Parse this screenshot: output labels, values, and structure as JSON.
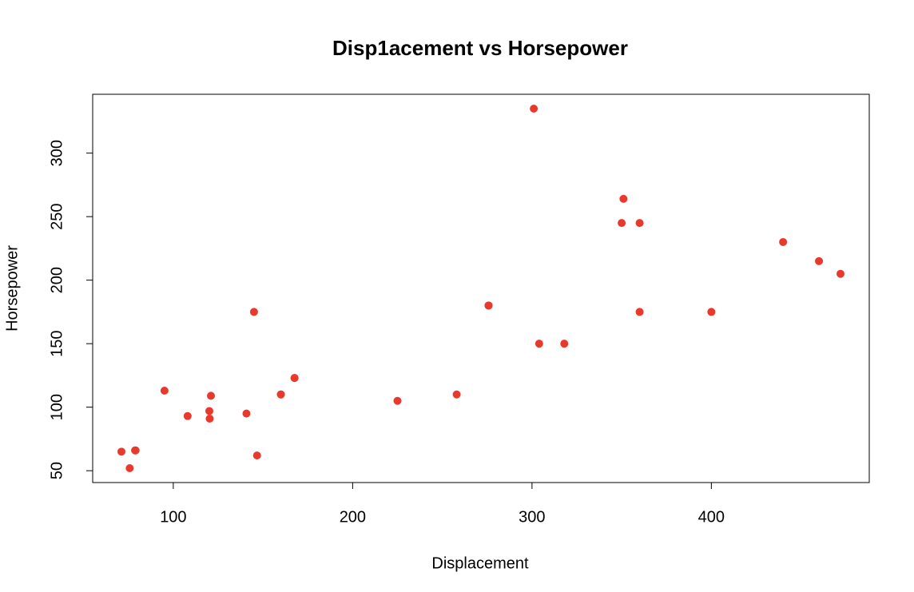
{
  "chart_data": {
    "type": "scatter",
    "title": "Disp1acement vs Horsepower",
    "x_label": "Displacement",
    "y_label": "Horsepower",
    "color": "#e8392d",
    "x": [
      160,
      160,
      108,
      258,
      360,
      225,
      360,
      146.7,
      140.8,
      167.6,
      167.6,
      275.8,
      275.8,
      275.8,
      472,
      460,
      440,
      78.7,
      75.7,
      71.1,
      120.1,
      318,
      304,
      350,
      400,
      79,
      120.3,
      95.1,
      351,
      145,
      301,
      121
    ],
    "values": [
      110,
      110,
      93,
      110,
      175,
      105,
      245,
      62,
      95,
      123,
      123,
      180,
      180,
      180,
      205,
      215,
      230,
      66,
      52,
      65,
      97,
      150,
      150,
      245,
      175,
      66,
      91,
      113,
      264,
      175,
      335,
      109
    ],
    "xlim": [
      55.06,
      488.04
    ],
    "xticks": [
      100,
      200,
      300,
      400
    ],
    "ylim": [
      40.68,
      346.32
    ],
    "yticks": [
      50,
      100,
      150,
      200,
      250,
      300
    ]
  }
}
